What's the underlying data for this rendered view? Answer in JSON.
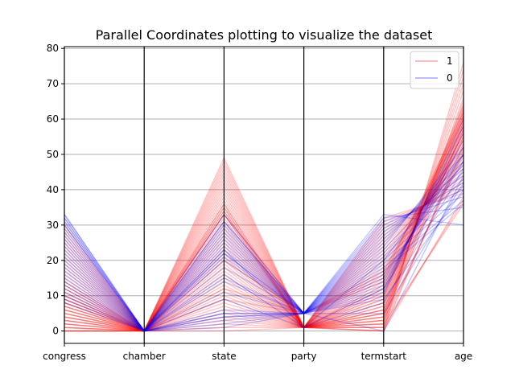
{
  "chart_data": {
    "type": "parallel_coordinates",
    "title": "Parallel Coordinates plotting to visualize the dataset",
    "dimensions": [
      "congress",
      "chamber",
      "state",
      "party",
      "termstart",
      "age"
    ],
    "ylim": [
      -3.5,
      80.5
    ],
    "yticks": [
      0,
      10,
      20,
      30,
      40,
      50,
      60,
      70,
      80
    ],
    "grid": "horizontal",
    "legend": {
      "placement": "upper-right",
      "entries": [
        "1",
        "0"
      ]
    },
    "colors": {
      "1": "#ff0000",
      "0": "#0000ff"
    },
    "series": [
      {
        "name": "1",
        "lines": [
          [
            0,
            0,
            49,
            1,
            0,
            76
          ],
          [
            0,
            0,
            48,
            1,
            1,
            74
          ],
          [
            1,
            0,
            46,
            1,
            2,
            72
          ],
          [
            2,
            0,
            44,
            1,
            3,
            70
          ],
          [
            3,
            0,
            43,
            1,
            4,
            68
          ],
          [
            4,
            0,
            42,
            1,
            5,
            66
          ],
          [
            5,
            0,
            41,
            1,
            6,
            65
          ],
          [
            6,
            0,
            40,
            1,
            7,
            64
          ],
          [
            7,
            0,
            38,
            1,
            8,
            63
          ],
          [
            8,
            0,
            37,
            1,
            9,
            62
          ],
          [
            9,
            0,
            36,
            1,
            10,
            61
          ],
          [
            10,
            0,
            35,
            1,
            11,
            60
          ],
          [
            11,
            0,
            34,
            1,
            12,
            59
          ],
          [
            12,
            0,
            33,
            1,
            13,
            58
          ],
          [
            13,
            0,
            32,
            1,
            14,
            57
          ],
          [
            14,
            0,
            31,
            1,
            15,
            56
          ],
          [
            15,
            0,
            30,
            1,
            16,
            55
          ],
          [
            16,
            0,
            29,
            1,
            17,
            54
          ],
          [
            17,
            0,
            28,
            1,
            18,
            53
          ],
          [
            18,
            0,
            27,
            1,
            19,
            52
          ],
          [
            19,
            0,
            26,
            1,
            20,
            51
          ],
          [
            20,
            0,
            25,
            1,
            21,
            50
          ],
          [
            21,
            0,
            24,
            1,
            22,
            49
          ],
          [
            22,
            0,
            23,
            1,
            23,
            48
          ],
          [
            23,
            0,
            22,
            1,
            24,
            47
          ],
          [
            24,
            0,
            21,
            1,
            25,
            46
          ],
          [
            25,
            0,
            20,
            1,
            26,
            45
          ],
          [
            26,
            0,
            19,
            1,
            27,
            44
          ],
          [
            27,
            0,
            18,
            1,
            28,
            43
          ],
          [
            28,
            0,
            17,
            1,
            29,
            42
          ],
          [
            29,
            0,
            16,
            1,
            30,
            41
          ],
          [
            30,
            0,
            15,
            1,
            31,
            40
          ],
          [
            0,
            0,
            14,
            1,
            32,
            39
          ],
          [
            1,
            0,
            13,
            1,
            0,
            38
          ],
          [
            2,
            0,
            12,
            1,
            1,
            37
          ],
          [
            3,
            0,
            11,
            1,
            2,
            36
          ],
          [
            4,
            0,
            10,
            1,
            3,
            57
          ],
          [
            5,
            0,
            9,
            1,
            4,
            58
          ],
          [
            6,
            0,
            8,
            1,
            5,
            59
          ],
          [
            7,
            0,
            7,
            1,
            6,
            60
          ],
          [
            8,
            0,
            6,
            1,
            7,
            61
          ],
          [
            9,
            0,
            5,
            1,
            8,
            62
          ],
          [
            10,
            0,
            4,
            1,
            9,
            63
          ],
          [
            11,
            0,
            3,
            1,
            10,
            64
          ],
          [
            12,
            0,
            2,
            1,
            11,
            55
          ],
          [
            13,
            0,
            1,
            1,
            12,
            56
          ],
          [
            14,
            0,
            0,
            1,
            13,
            54
          ],
          [
            0,
            0,
            33,
            1,
            0,
            53
          ],
          [
            1,
            0,
            34,
            1,
            1,
            52
          ],
          [
            2,
            0,
            35,
            1,
            2,
            51
          ],
          [
            3,
            0,
            36,
            1,
            3,
            50
          ],
          [
            4,
            0,
            39,
            1,
            4,
            55
          ],
          [
            5,
            0,
            45,
            1,
            5,
            57
          ],
          [
            6,
            0,
            47,
            1,
            6,
            59
          ],
          [
            7,
            0,
            33,
            5,
            14,
            61
          ],
          [
            8,
            0,
            20,
            5,
            15,
            62
          ],
          [
            9,
            0,
            12,
            5,
            16,
            60
          ],
          [
            10,
            0,
            9,
            5,
            17,
            58
          ]
        ]
      },
      {
        "name": "0",
        "lines": [
          [
            33,
            0,
            33,
            5,
            33,
            30
          ],
          [
            32,
            0,
            31,
            5,
            32,
            35
          ],
          [
            31,
            0,
            29,
            5,
            31,
            38
          ],
          [
            30,
            0,
            28,
            5,
            30,
            40
          ],
          [
            29,
            0,
            27,
            5,
            29,
            42
          ],
          [
            28,
            0,
            26,
            5,
            28,
            44
          ],
          [
            27,
            0,
            25,
            5,
            27,
            46
          ],
          [
            26,
            0,
            24,
            5,
            26,
            48
          ],
          [
            25,
            0,
            23,
            5,
            25,
            50
          ],
          [
            24,
            0,
            22,
            5,
            24,
            52
          ],
          [
            23,
            0,
            21,
            5,
            23,
            47
          ],
          [
            22,
            0,
            18,
            5,
            22,
            45
          ],
          [
            21,
            0,
            14,
            5,
            21,
            43
          ],
          [
            20,
            0,
            11,
            5,
            20,
            41
          ],
          [
            19,
            0,
            6,
            5,
            19,
            39
          ],
          [
            18,
            0,
            4,
            5,
            18,
            37
          ],
          [
            17,
            0,
            2,
            5,
            17,
            36
          ],
          [
            16,
            0,
            1,
            5,
            16,
            48
          ],
          [
            15,
            0,
            5,
            5,
            15,
            50
          ],
          [
            14,
            0,
            15,
            5,
            14,
            52
          ],
          [
            13,
            0,
            22,
            5,
            13,
            54
          ],
          [
            12,
            0,
            3,
            5,
            12,
            56
          ],
          [
            11,
            0,
            31,
            5,
            11,
            58
          ],
          [
            10,
            0,
            20,
            5,
            10,
            60
          ],
          [
            9,
            0,
            5,
            5,
            9,
            40
          ],
          [
            8,
            0,
            4,
            5,
            5,
            42
          ],
          [
            33,
            0,
            30,
            5,
            0,
            44
          ],
          [
            32,
            0,
            9,
            1,
            8,
            46
          ],
          [
            31,
            0,
            16,
            1,
            12,
            48
          ],
          [
            30,
            0,
            23,
            1,
            20,
            50
          ]
        ]
      }
    ]
  }
}
